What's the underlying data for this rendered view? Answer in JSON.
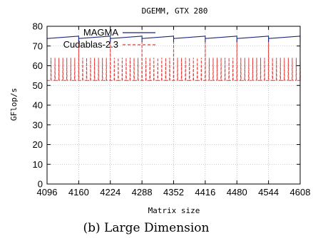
{
  "chart_data": {
    "type": "line",
    "title": "DGEMM, GTX 280",
    "xlabel": "Matrix size",
    "ylabel": "GFlop/s",
    "caption": "(b) Large Dimension",
    "xlim": [
      4096,
      4608
    ],
    "ylim": [
      0,
      80
    ],
    "xticks": [
      4096,
      4160,
      4224,
      4288,
      4352,
      4416,
      4480,
      4544,
      4608
    ],
    "yticks": [
      0,
      10,
      20,
      30,
      40,
      50,
      60,
      70,
      80
    ],
    "grid": true,
    "legend_position": "top-left",
    "series": [
      {
        "name": "MAGMA",
        "color": "#1a237e",
        "style": "solid",
        "pattern": {
          "period": 64,
          "low": 73.8,
          "high": 75.0,
          "dip": 72.0
        }
      },
      {
        "name": "Cudablas-2.3",
        "color": "#e53935",
        "style": "dashed",
        "pattern": {
          "baseline": 52.5,
          "spike_every": 8,
          "spike_peak": 64,
          "big_spike_every": 64,
          "big_spike_peak": 73
        }
      }
    ]
  }
}
